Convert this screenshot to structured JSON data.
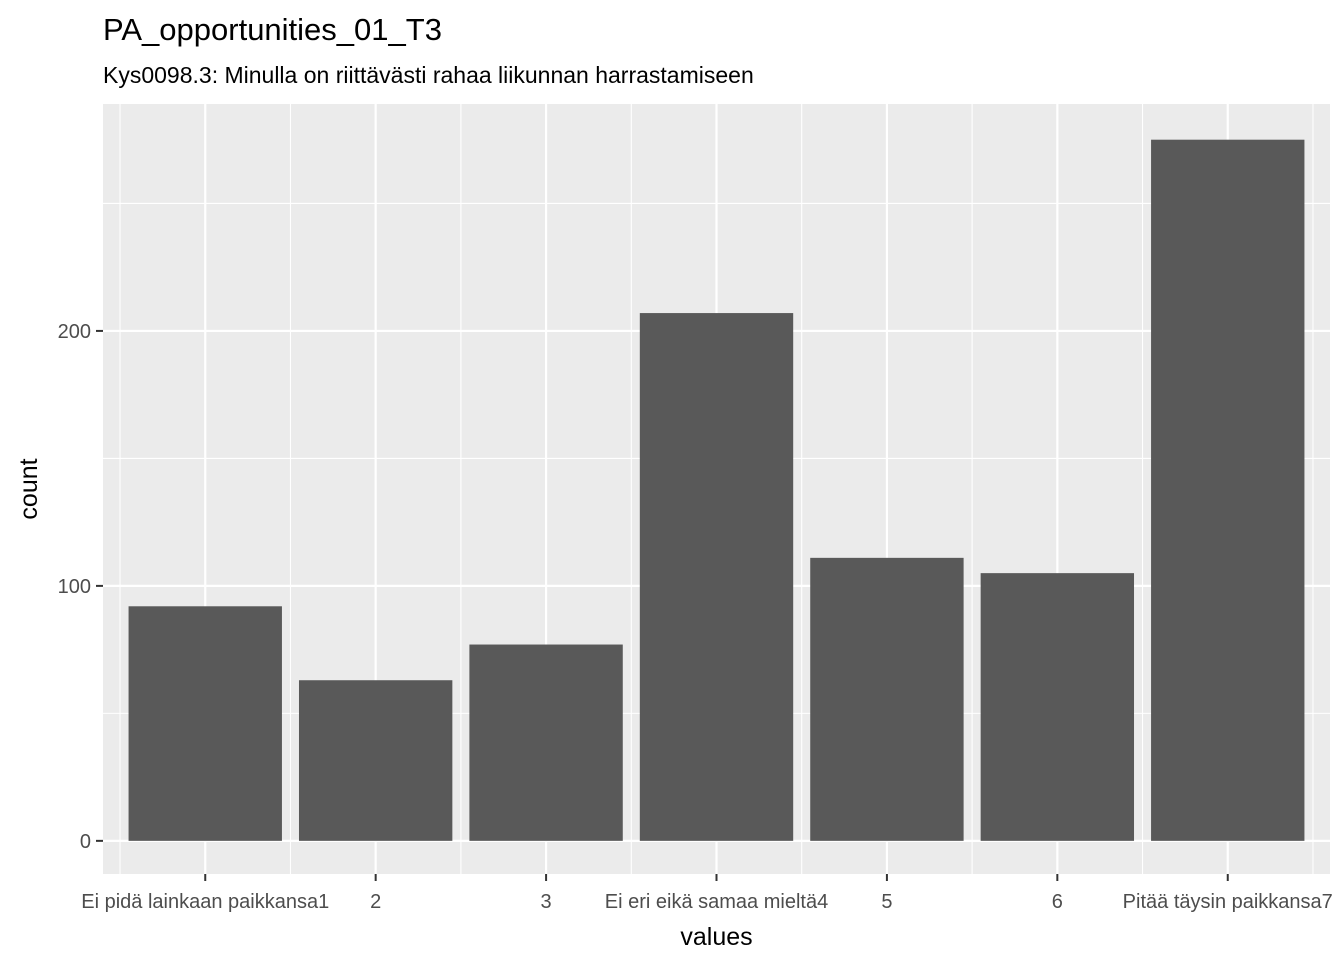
{
  "chart_data": {
    "type": "bar",
    "title": "PA_opportunities_01_T3",
    "subtitle": "Kys0098.3: Minulla on riittävästi rahaa liikunnan harrastamiseen",
    "xlabel": "values",
    "ylabel": "count",
    "categories": [
      "Ei pidä lainkaan paikkansa1",
      "2",
      "3",
      "Ei eri eikä samaa mieltä4",
      "5",
      "6",
      "Pitää täysin paikkansa7"
    ],
    "values": [
      92,
      63,
      77,
      207,
      111,
      105,
      275
    ],
    "ylim": [
      -13,
      289
    ],
    "yticks": [
      0,
      100,
      200
    ],
    "grid": true,
    "colors": {
      "bar": "#595959",
      "panel": "#ebebeb",
      "grid": "#ffffff"
    }
  }
}
